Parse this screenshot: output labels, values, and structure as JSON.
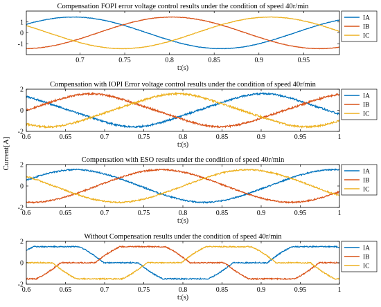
{
  "figure": {
    "shared_ylabel": "Current[A]"
  },
  "chart_data": [
    {
      "type": "line",
      "title": "Compensation FOPI error voltage control results under the condition of speed 40r/min",
      "xlabel": "t:(s)",
      "ylabel": "",
      "xlim": [
        0.64,
        0.99
      ],
      "ylim": [
        -2,
        2
      ],
      "xticks": [
        0.7,
        0.75,
        0.8,
        0.85,
        0.9,
        0.95
      ],
      "xtick_labels": [
        "0.7",
        "0.75",
        "0.8",
        "0.85",
        "0.9",
        "0.95"
      ],
      "yticks": [
        -1,
        0,
        1
      ],
      "ytick_labels": [
        "-1",
        "0",
        "1"
      ],
      "legend": "right",
      "grid": false,
      "series": [
        {
          "name": "IA",
          "color": "#0072BD",
          "model": "sine",
          "amplitude": 1.45,
          "zero_up": 0.61,
          "period": 0.33,
          "distortion": 0,
          "noise": 0.02
        },
        {
          "name": "IB",
          "color": "#D95319",
          "model": "sine",
          "amplitude": 1.45,
          "zero_up": 0.72,
          "period": 0.33,
          "distortion": 0,
          "noise": 0.02
        },
        {
          "name": "IC",
          "color": "#EDB120",
          "model": "sine",
          "amplitude": 1.45,
          "zero_up": 0.83,
          "period": 0.33,
          "distortion": 0,
          "noise": 0.02
        }
      ]
    },
    {
      "type": "line",
      "title": "Compensation with IOPI Error voltage control results under the condition of speed 40r/min",
      "xlabel": "t:(s)",
      "ylabel": "",
      "xlim": [
        0.6,
        1.0
      ],
      "ylim": [
        -2,
        2
      ],
      "xticks": [
        0.6,
        0.65,
        0.7,
        0.75,
        0.8,
        0.85,
        0.9,
        0.95,
        1.0
      ],
      "xtick_labels": [
        "0.6",
        "0.65",
        "0.7",
        "0.75",
        "0.8",
        "0.85",
        "0.9",
        "0.95",
        "1"
      ],
      "yticks": [
        -2,
        0,
        2
      ],
      "ytick_labels": [
        "-2",
        "0",
        "2"
      ],
      "legend": "right",
      "grid": false,
      "series": [
        {
          "name": "IA",
          "color": "#0072BD",
          "model": "sine",
          "amplitude": 1.5,
          "zero_up": 0.82,
          "period": 0.33,
          "distortion": 0.15,
          "noise": 0.08
        },
        {
          "name": "IB",
          "color": "#D95319",
          "model": "sine",
          "amplitude": 1.5,
          "zero_up": 0.6,
          "period": 0.33,
          "distortion": 0.15,
          "noise": 0.08
        },
        {
          "name": "IC",
          "color": "#EDB120",
          "model": "sine",
          "amplitude": 1.5,
          "zero_up": 0.71,
          "period": 0.33,
          "distortion": 0.15,
          "noise": 0.08
        }
      ]
    },
    {
      "type": "line",
      "title": "Compensation with ESO results under the condition of speed 40r/min",
      "xlabel": "t:(s)",
      "ylabel": "",
      "xlim": [
        0.6,
        1.0
      ],
      "ylim": [
        -2,
        2
      ],
      "xticks": [
        0.6,
        0.65,
        0.7,
        0.75,
        0.8,
        0.85,
        0.9,
        0.95,
        1.0
      ],
      "xtick_labels": [
        "0.6",
        "0.65",
        "0.7",
        "0.75",
        "0.8",
        "0.85",
        "0.9",
        "0.95",
        "1"
      ],
      "yticks": [
        -2,
        0,
        2
      ],
      "ytick_labels": [
        "-2",
        "0",
        "2"
      ],
      "legend": "right",
      "grid": false,
      "series": [
        {
          "name": "IA",
          "color": "#0072BD",
          "model": "sine",
          "amplitude": 1.5,
          "zero_up": 0.58,
          "period": 0.33,
          "distortion": 0.05,
          "noise": 0.06
        },
        {
          "name": "IB",
          "color": "#D95319",
          "model": "sine",
          "amplitude": 1.5,
          "zero_up": 0.69,
          "period": 0.33,
          "distortion": 0.05,
          "noise": 0.06
        },
        {
          "name": "IC",
          "color": "#EDB120",
          "model": "sine",
          "amplitude": 1.5,
          "zero_up": 0.8,
          "period": 0.33,
          "distortion": 0.05,
          "noise": 0.06
        }
      ]
    },
    {
      "type": "line",
      "title": "Without Compensation results under the condition of speed 40r/min",
      "xlabel": "t:(s)",
      "ylabel": "",
      "xlim": [
        0.6,
        1.0
      ],
      "ylim": [
        -2,
        2
      ],
      "xticks": [
        0.6,
        0.65,
        0.7,
        0.75,
        0.8,
        0.85,
        0.9,
        0.95,
        1.0
      ],
      "xtick_labels": [
        "0.6",
        "0.65",
        "0.7",
        "0.75",
        "0.8",
        "0.85",
        "0.9",
        "0.95",
        "1"
      ],
      "yticks": [
        -2,
        0,
        2
      ],
      "ytick_labels": [
        "-2",
        "0",
        "2"
      ],
      "legend": "right",
      "grid": false,
      "series": [
        {
          "name": "IA",
          "color": "#0072BD",
          "model": "clamped",
          "amplitude": 1.5,
          "zero_up": 0.556,
          "period": 0.33,
          "deadband": 0.022,
          "noise": 0.05
        },
        {
          "name": "IB",
          "color": "#D95319",
          "model": "clamped",
          "amplitude": 1.5,
          "zero_up": 0.666,
          "period": 0.33,
          "deadband": 0.022,
          "noise": 0.05
        },
        {
          "name": "IC",
          "color": "#EDB120",
          "model": "clamped",
          "amplitude": 1.5,
          "zero_up": 0.776,
          "period": 0.33,
          "deadband": 0.022,
          "noise": 0.05
        }
      ]
    }
  ]
}
